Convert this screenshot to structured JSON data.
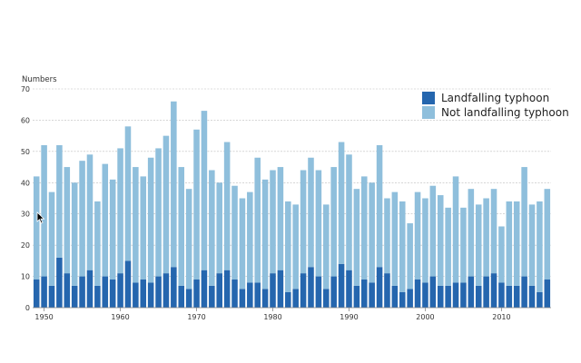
{
  "chart_data": {
    "type": "bar",
    "stacked": true,
    "ylabel": "Numbers",
    "ylim": [
      0,
      70
    ],
    "y_ticks": [
      0,
      10,
      20,
      30,
      40,
      50,
      60,
      70
    ],
    "x_tick_labels": [
      "1950",
      "1960",
      "1970",
      "1980",
      "1990",
      "2000",
      "2010"
    ],
    "x": [
      1949,
      1950,
      1951,
      1952,
      1953,
      1954,
      1955,
      1956,
      1957,
      1958,
      1959,
      1960,
      1961,
      1962,
      1963,
      1964,
      1965,
      1966,
      1967,
      1968,
      1969,
      1970,
      1971,
      1972,
      1973,
      1974,
      1975,
      1976,
      1977,
      1978,
      1979,
      1980,
      1981,
      1982,
      1983,
      1984,
      1985,
      1986,
      1987,
      1988,
      1989,
      1990,
      1991,
      1992,
      1993,
      1994,
      1995,
      1996,
      1997,
      1998,
      1999,
      2000,
      2001,
      2002,
      2003,
      2004,
      2005,
      2006,
      2007,
      2008,
      2009,
      2010,
      2011,
      2012,
      2013,
      2014,
      2015,
      2016
    ],
    "series": [
      {
        "name": "Landfalling typhoon",
        "color": "#2566ae",
        "values": [
          9,
          10,
          7,
          16,
          11,
          7,
          10,
          12,
          7,
          10,
          9,
          11,
          15,
          8,
          9,
          8,
          10,
          11,
          13,
          7,
          6,
          9,
          12,
          7,
          11,
          12,
          9,
          6,
          8,
          8,
          6,
          11,
          12,
          5,
          6,
          11,
          13,
          10,
          6,
          10,
          14,
          12,
          7,
          9,
          8,
          13,
          11,
          7,
          5,
          6,
          9,
          8,
          10,
          7,
          7,
          8,
          8,
          10,
          7,
          10,
          11,
          8,
          7,
          7,
          10,
          7,
          5,
          9
        ]
      },
      {
        "name": "Not landfalling typhoon",
        "color": "#8fbfdc",
        "values": [
          33,
          42,
          30,
          36,
          34,
          33,
          37,
          37,
          27,
          36,
          32,
          40,
          43,
          37,
          33,
          40,
          41,
          44,
          53,
          38,
          32,
          48,
          51,
          37,
          29,
          41,
          30,
          29,
          29,
          40,
          35,
          33,
          33,
          29,
          27,
          33,
          35,
          34,
          27,
          35,
          39,
          37,
          31,
          33,
          32,
          39,
          24,
          30,
          29,
          21,
          28,
          27,
          29,
          29,
          25,
          34,
          24,
          28,
          26,
          25,
          27,
          18,
          27,
          27,
          35,
          26,
          29,
          29
        ]
      }
    ],
    "legend": "top-right",
    "grid": true
  }
}
